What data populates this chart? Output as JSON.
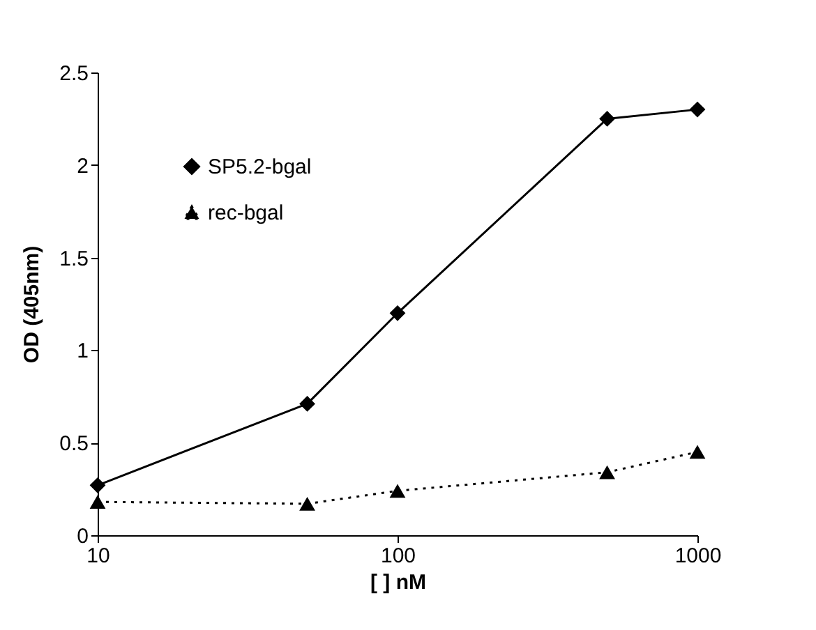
{
  "chart_data": {
    "type": "line",
    "xlabel": "[ ] nM",
    "ylabel": "OD (405nm)",
    "x": [
      10,
      50,
      100,
      500,
      1000
    ],
    "series": [
      {
        "name": "SP5.2-bgal",
        "color": "#000000",
        "values": [
          0.27,
          0.71,
          1.2,
          2.25,
          2.3
        ],
        "marker": "diamond",
        "line_style": "solid"
      },
      {
        "name": "rec-bgal",
        "color": "#000000",
        "values": [
          0.18,
          0.17,
          0.24,
          0.34,
          0.45
        ],
        "marker": "triangle",
        "line_style": "dotted"
      }
    ],
    "log": "x",
    "xlim": [
      10,
      1000
    ],
    "xticks": [
      10,
      100,
      1000
    ],
    "ylim": [
      0,
      2.5
    ],
    "yticks": [
      0,
      0.5,
      1,
      1.5,
      2,
      2.5
    ],
    "legend": "top left"
  }
}
